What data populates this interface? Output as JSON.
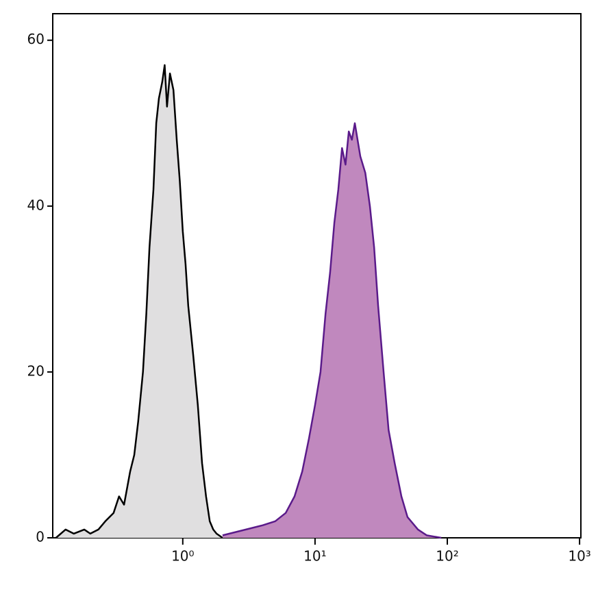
{
  "chart_data": {
    "type": "area",
    "xscale": "log",
    "xlim": [
      0.104,
      1023
    ],
    "ylim": [
      0,
      63.2
    ],
    "xticks": [
      {
        "value": 1,
        "label": "10⁰"
      },
      {
        "value": 10,
        "label": "10¹"
      },
      {
        "value": 100,
        "label": "10²"
      },
      {
        "value": 1000,
        "label": "10³"
      }
    ],
    "yticks": [
      0,
      20,
      40,
      60
    ],
    "series": [
      {
        "color": "#000000",
        "fill": "#e0dfe0",
        "x": [
          0.11,
          0.13,
          0.15,
          0.18,
          0.2,
          0.23,
          0.26,
          0.3,
          0.33,
          0.36,
          0.4,
          0.43,
          0.46,
          0.5,
          0.53,
          0.56,
          0.6,
          0.63,
          0.66,
          0.7,
          0.73,
          0.76,
          0.8,
          0.85,
          0.9,
          0.95,
          1.0,
          1.05,
          1.1,
          1.2,
          1.3,
          1.4,
          1.5,
          1.6,
          1.7,
          1.8,
          2.0
        ],
        "values": [
          0,
          1,
          0.5,
          1,
          0.5,
          1,
          2,
          3,
          5,
          4,
          8,
          10,
          14,
          20,
          27,
          35,
          42,
          50,
          53,
          55,
          57,
          52,
          56,
          54,
          48,
          43,
          37,
          33,
          28,
          22,
          16,
          9,
          5,
          2,
          1,
          0.5,
          0
        ]
      },
      {
        "color": "#5a1a8a",
        "fill": "#c088be",
        "x": [
          2,
          3,
          4,
          5,
          6,
          7,
          8,
          9,
          10,
          11,
          12,
          13,
          14,
          15,
          16,
          17,
          18,
          19,
          20,
          22,
          24,
          26,
          28,
          30,
          33,
          36,
          40,
          45,
          50,
          60,
          70,
          90
        ],
        "values": [
          0.3,
          1,
          1.5,
          2,
          3,
          5,
          8,
          12,
          16,
          20,
          27,
          32,
          38,
          42,
          47,
          45,
          49,
          48,
          50,
          46,
          44,
          40,
          35,
          28,
          20,
          13,
          9,
          5,
          2.5,
          1,
          0.3,
          0
        ]
      }
    ]
  }
}
